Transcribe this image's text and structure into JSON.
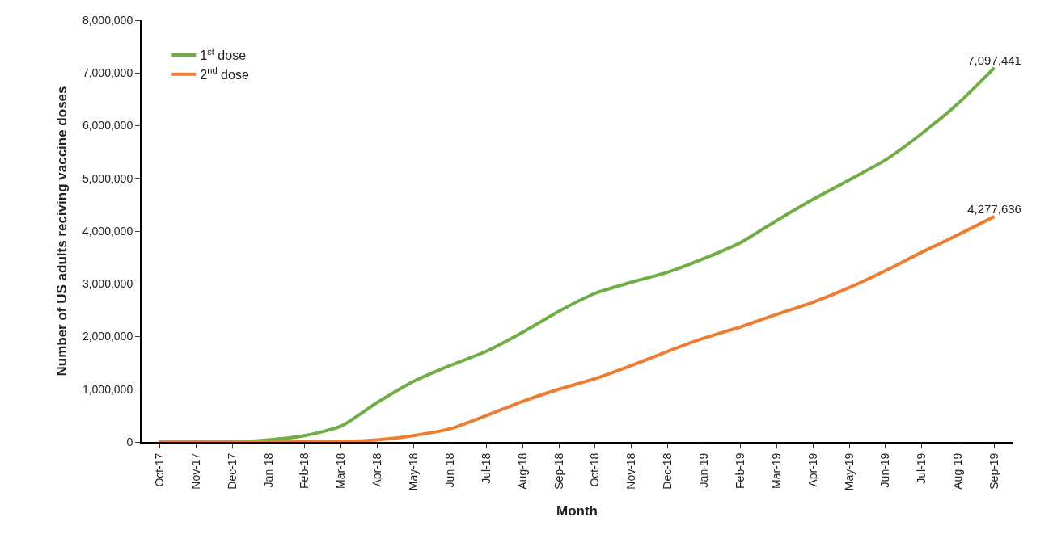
{
  "chart_data": {
    "type": "line",
    "categories": [
      "Oct-17",
      "Nov-17",
      "Dec-17",
      "Jan-18",
      "Feb-18",
      "Mar-18",
      "Apr-18",
      "May-18",
      "Jun-18",
      "Jul-18",
      "Aug-18",
      "Sep-18",
      "Oct-18",
      "Nov-18",
      "Dec-18",
      "Jan-19",
      "Feb-19",
      "Mar-19",
      "Apr-19",
      "May-19",
      "Jun-19",
      "Jul-19",
      "Aug-19",
      "Sep-19"
    ],
    "series": [
      {
        "name": "1$^{st}$ dose",
        "color": "#70ad47",
        "values": [
          0,
          0,
          0,
          40000,
          120000,
          300000,
          750000,
          1150000,
          1450000,
          1720000,
          2080000,
          2480000,
          2820000,
          3030000,
          3220000,
          3480000,
          3780000,
          4200000,
          4600000,
          4970000,
          5350000,
          5850000,
          6420000,
          7097441
        ],
        "value_labels": [
          null,
          null,
          null,
          null,
          null,
          null,
          null,
          null,
          null,
          null,
          null,
          null,
          null,
          null,
          null,
          null,
          null,
          null,
          null,
          null,
          null,
          null,
          null,
          "7,097,441"
        ]
      },
      {
        "name": "2$^{nd}$ dose",
        "color": "#ed7d31",
        "values": [
          0,
          0,
          0,
          0,
          10000,
          10000,
          40000,
          120000,
          250000,
          500000,
          770000,
          1000000,
          1200000,
          1450000,
          1720000,
          1970000,
          2180000,
          2420000,
          2650000,
          2930000,
          3250000,
          3600000,
          3930000,
          4277636
        ],
        "value_labels": [
          null,
          null,
          null,
          null,
          null,
          null,
          null,
          null,
          null,
          null,
          null,
          null,
          null,
          null,
          null,
          null,
          null,
          null,
          null,
          null,
          null,
          null,
          null,
          "4,277,636"
        ]
      }
    ],
    "xlabel": "Month",
    "ylabel": "Number of US adults reciving vaccine doses",
    "ylim": [
      0,
      8000000
    ],
    "yticks": [
      {
        "value": 0,
        "label": "0"
      },
      {
        "value": 1000000,
        "label": "1,000,000"
      },
      {
        "value": 2000000,
        "label": "2,000,000"
      },
      {
        "value": 3000000,
        "label": "3,000,000"
      },
      {
        "value": 4000000,
        "label": "4,000,000"
      },
      {
        "value": 5000000,
        "label": "5,000,000"
      },
      {
        "value": 6000000,
        "label": "6,000,000"
      },
      {
        "value": 7000000,
        "label": "7,000,000"
      },
      {
        "value": 8000000,
        "label": "8,000,000"
      }
    ],
    "legend": "top left",
    "marker": "none",
    "line_style": "solid"
  }
}
